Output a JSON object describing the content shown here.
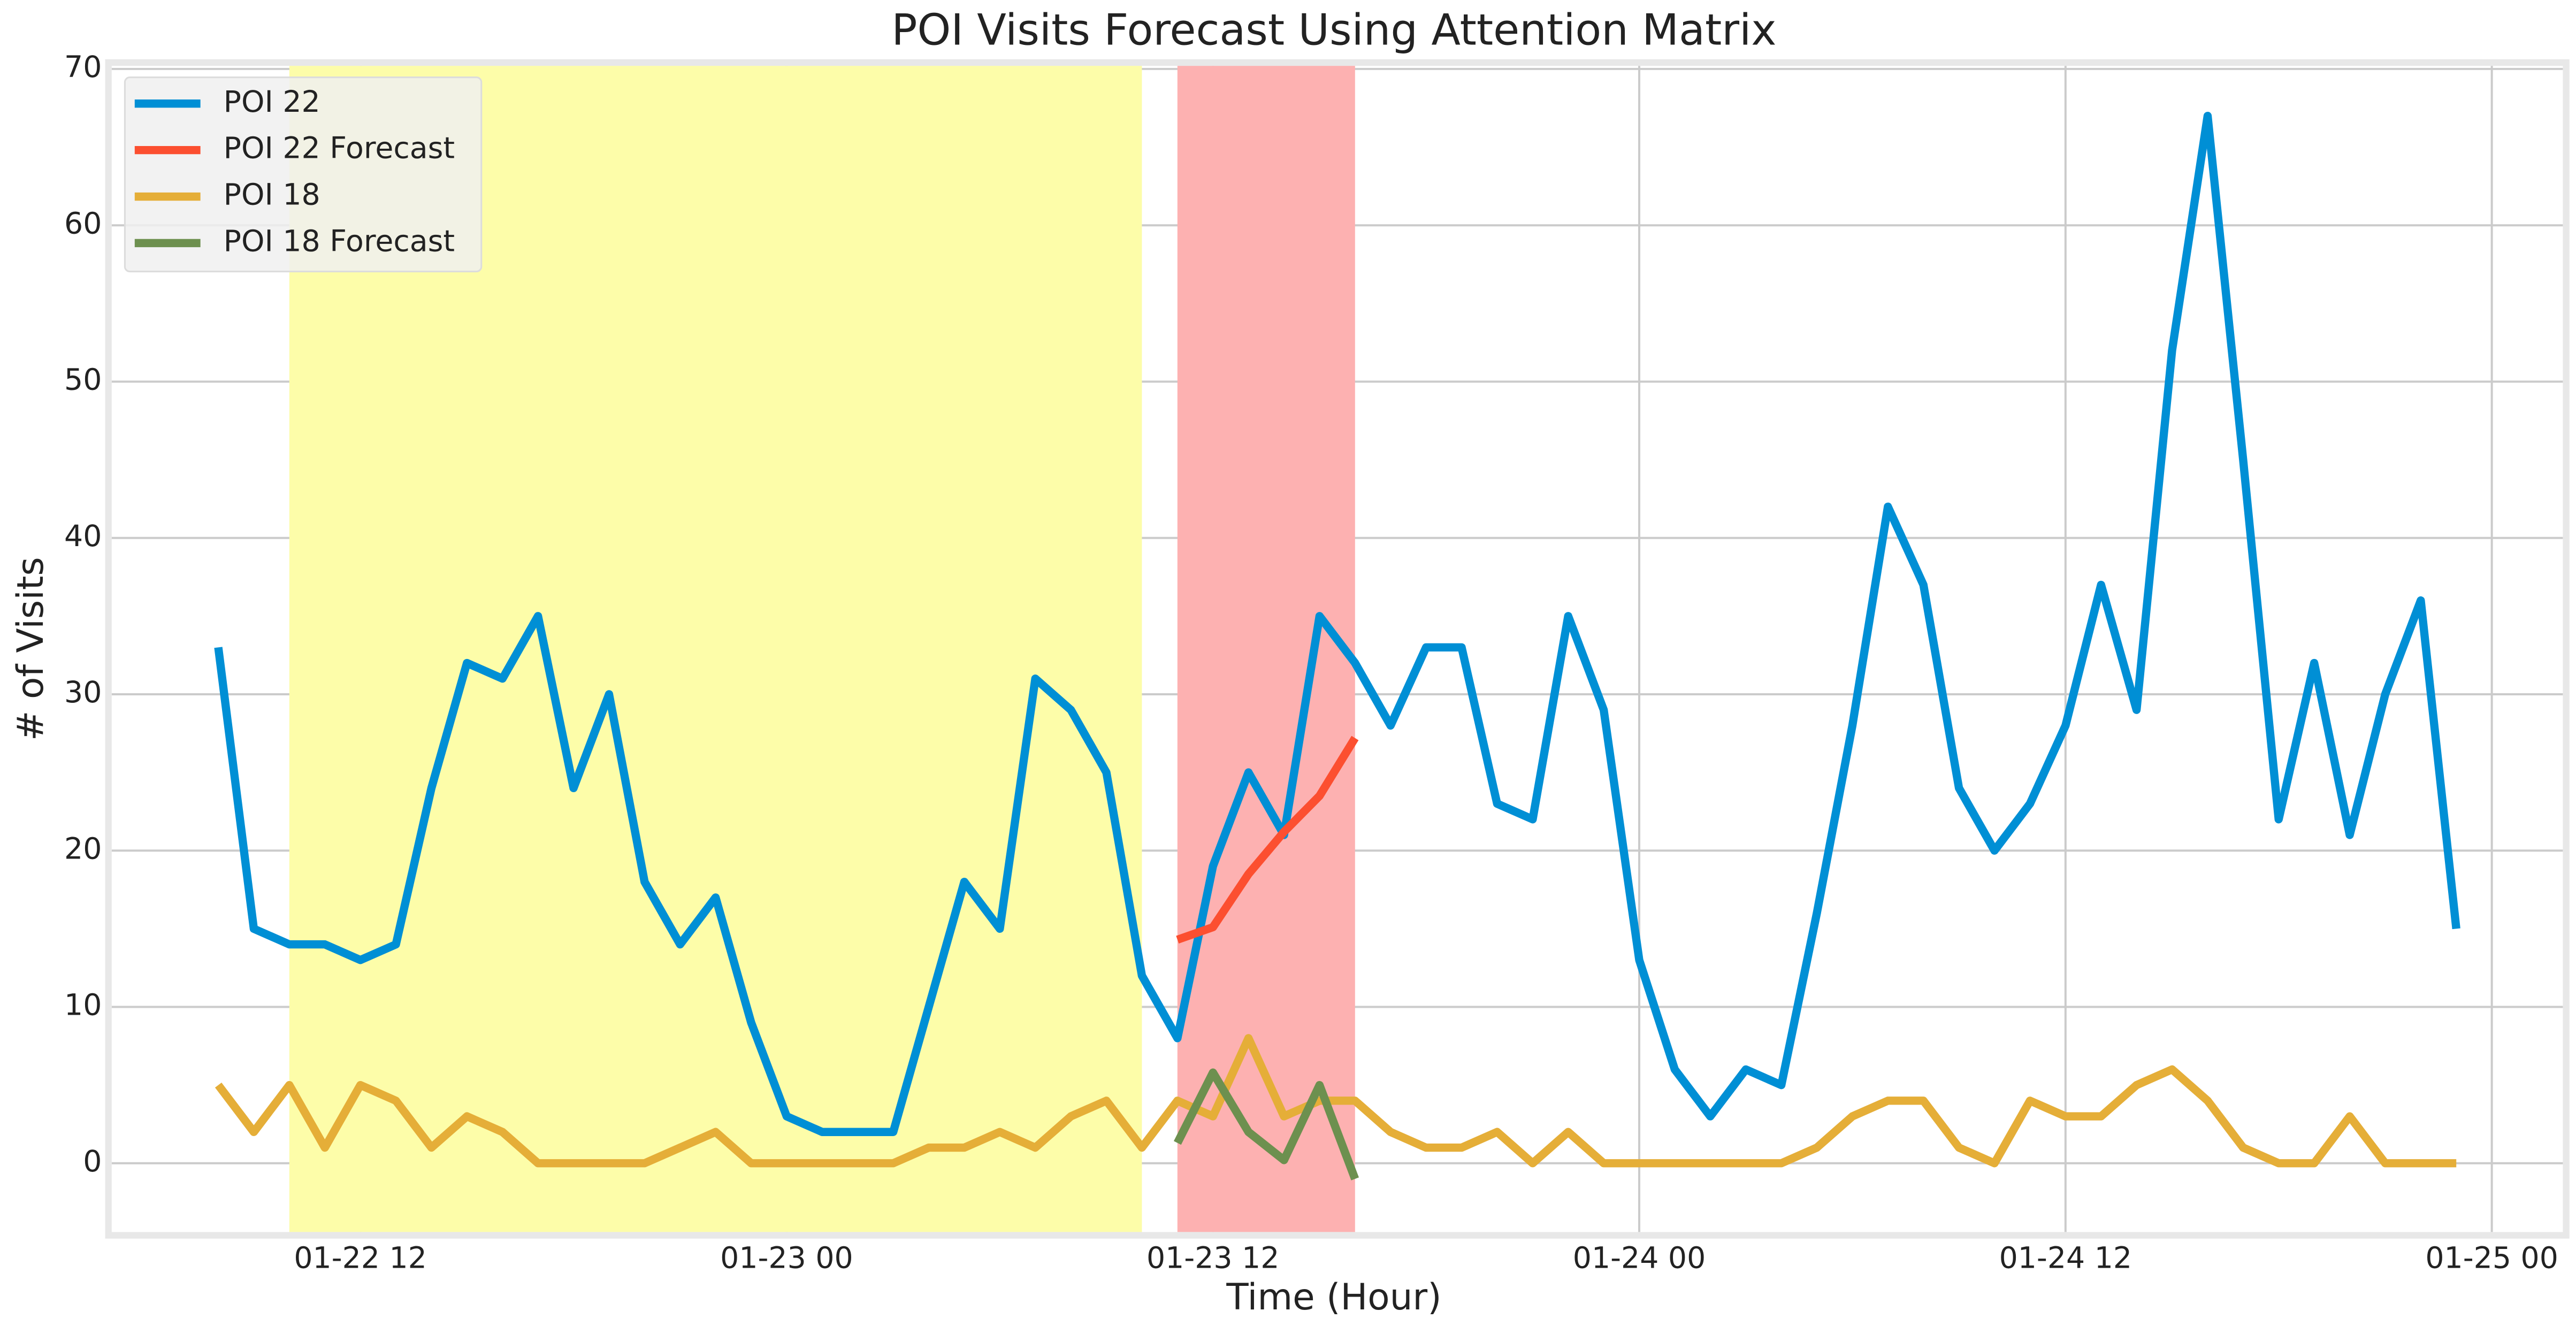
{
  "chart_data": {
    "type": "line",
    "title": "POI Visits Forecast Using Attention Matrix",
    "x_label": "Time (Hour)",
    "y_label": "# of Visits",
    "xlim": [
      "01-22 05",
      "01-25 02"
    ],
    "xticks": [
      "01-22 12",
      "01-23 00",
      "01-23 12",
      "01-24 00",
      "01-24 12",
      "01-25 00"
    ],
    "ylim": [
      -4.4,
      70.2
    ],
    "yticks": [
      0,
      10,
      20,
      30,
      40,
      50,
      60,
      70
    ],
    "grid": true,
    "legend": "upper left",
    "spans": [
      {
        "start": "01-22 10",
        "end": "01-23 10",
        "color": "#fdfda9"
      },
      {
        "start": "01-23 11",
        "end": "01-23 16",
        "color": "#fdb1b1"
      }
    ],
    "series": [
      {
        "name": "POI 22",
        "color": "#008fd5",
        "x": [
          "01-22 08",
          "01-22 09",
          "01-22 10",
          "01-22 11",
          "01-22 12",
          "01-22 13",
          "01-22 14",
          "01-22 15",
          "01-22 16",
          "01-22 17",
          "01-22 18",
          "01-22 19",
          "01-22 20",
          "01-22 21",
          "01-22 22",
          "01-22 23",
          "01-23 00",
          "01-23 01",
          "01-23 02",
          "01-23 03",
          "01-23 04",
          "01-23 05",
          "01-23 06",
          "01-23 07",
          "01-23 08",
          "01-23 09",
          "01-23 10",
          "01-23 11",
          "01-23 12",
          "01-23 13",
          "01-23 14",
          "01-23 15",
          "01-23 16",
          "01-23 17",
          "01-23 18",
          "01-23 19",
          "01-23 20",
          "01-23 21",
          "01-23 22",
          "01-23 23",
          "01-24 00",
          "01-24 01",
          "01-24 02",
          "01-24 03",
          "01-24 04",
          "01-24 05",
          "01-24 06",
          "01-24 07",
          "01-24 08",
          "01-24 09",
          "01-24 10",
          "01-24 11",
          "01-24 12",
          "01-24 13",
          "01-24 14",
          "01-24 15",
          "01-24 16",
          "01-24 17",
          "01-24 18",
          "01-24 19",
          "01-24 20",
          "01-24 21",
          "01-24 22",
          "01-24 23"
        ],
        "values": [
          33,
          15,
          14,
          14,
          13,
          14,
          24,
          32,
          31,
          35,
          24,
          30,
          18,
          14,
          17,
          9,
          3,
          2,
          2,
          2,
          10,
          18,
          15,
          31,
          29,
          25,
          12,
          8,
          19,
          25,
          21,
          35,
          32,
          28,
          33,
          33,
          23,
          22,
          35,
          29,
          13,
          6,
          3,
          6,
          5,
          16,
          28,
          42,
          37,
          24,
          20,
          23,
          28,
          37,
          29,
          52,
          67,
          45,
          22,
          32,
          21,
          30,
          36,
          15
        ]
      },
      {
        "name": "POI 22 Forecast",
        "color": "#fc4f30",
        "x": [
          "01-23 11",
          "01-23 12",
          "01-23 13",
          "01-23 14",
          "01-23 15",
          "01-23 16"
        ],
        "values": [
          14.3,
          15.1,
          18.5,
          21.2,
          23.5,
          27.2
        ]
      },
      {
        "name": "POI 18",
        "color": "#e5ae38",
        "x": [
          "01-22 08",
          "01-22 09",
          "01-22 10",
          "01-22 11",
          "01-22 12",
          "01-22 13",
          "01-22 14",
          "01-22 15",
          "01-22 16",
          "01-22 17",
          "01-22 18",
          "01-22 19",
          "01-22 20",
          "01-22 21",
          "01-22 22",
          "01-22 23",
          "01-23 00",
          "01-23 01",
          "01-23 02",
          "01-23 03",
          "01-23 04",
          "01-23 05",
          "01-23 06",
          "01-23 07",
          "01-23 08",
          "01-23 09",
          "01-23 10",
          "01-23 11",
          "01-23 12",
          "01-23 13",
          "01-23 14",
          "01-23 15",
          "01-23 16",
          "01-23 17",
          "01-23 18",
          "01-23 19",
          "01-23 20",
          "01-23 21",
          "01-23 22",
          "01-23 23",
          "01-24 00",
          "01-24 01",
          "01-24 02",
          "01-24 03",
          "01-24 04",
          "01-24 05",
          "01-24 06",
          "01-24 07",
          "01-24 08",
          "01-24 09",
          "01-24 10",
          "01-24 11",
          "01-24 12",
          "01-24 13",
          "01-24 14",
          "01-24 15",
          "01-24 16",
          "01-24 17",
          "01-24 18",
          "01-24 19",
          "01-24 20",
          "01-24 21",
          "01-24 22",
          "01-24 23"
        ],
        "values": [
          5,
          2,
          5,
          1,
          5,
          4,
          1,
          3,
          2,
          0,
          0,
          0,
          0,
          1,
          2,
          0,
          0,
          0,
          0,
          0,
          1,
          1,
          2,
          1,
          3,
          4,
          1,
          4,
          3,
          8,
          3,
          4,
          4,
          2,
          1,
          1,
          2,
          0,
          2,
          0,
          0,
          0,
          0,
          0,
          0,
          1,
          3,
          4,
          4,
          1,
          0,
          4,
          3,
          3,
          5,
          6,
          4,
          1,
          0,
          0,
          3,
          0,
          0,
          0
        ]
      },
      {
        "name": "POI 18 Forecast",
        "color": "#6d904f",
        "x": [
          "01-23 11",
          "01-23 12",
          "01-23 13",
          "01-23 14",
          "01-23 15",
          "01-23 16"
        ],
        "values": [
          1.3,
          5.8,
          2,
          0.2,
          5,
          -1
        ]
      }
    ]
  }
}
